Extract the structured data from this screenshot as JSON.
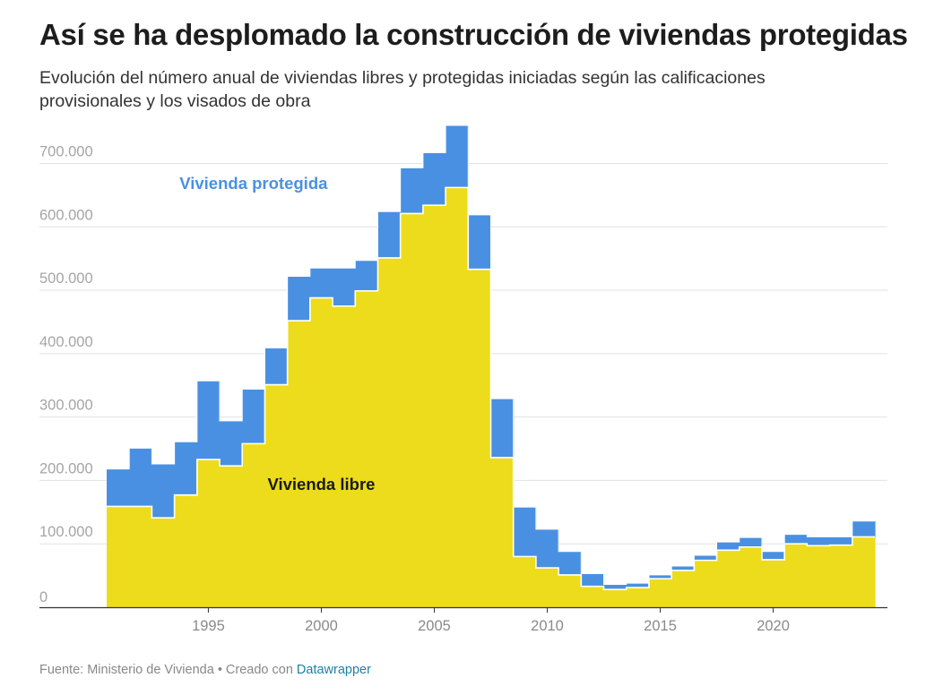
{
  "title": "Así se ha desplomado la construcción de viviendas protegidas",
  "subtitle": "Evolución del número anual de viviendas libres y protegidas iniciadas según las calificaciones provisionales y los visados de obra",
  "footer": {
    "source": "Fuente: Ministerio de Vivienda • Creado con ",
    "credit": "Datawrapper"
  },
  "chart_data": {
    "type": "area",
    "stacked": true,
    "step": true,
    "x": [
      1991,
      1992,
      1993,
      1994,
      1995,
      1996,
      1997,
      1998,
      1999,
      2000,
      2001,
      2002,
      2003,
      2004,
      2005,
      2006,
      2007,
      2008,
      2009,
      2010,
      2011,
      2012,
      2013,
      2014,
      2015,
      2016,
      2017,
      2018,
      2019,
      2020,
      2021,
      2022,
      2023,
      2024
    ],
    "series": [
      {
        "name": "Vivienda libre",
        "color": "#ecdc1c",
        "values": [
          159000,
          159000,
          141000,
          177000,
          233000,
          223000,
          258000,
          351000,
          452000,
          488000,
          475000,
          499000,
          551000,
          621000,
          634000,
          662000,
          533000,
          236000,
          80000,
          62000,
          51000,
          33000,
          28000,
          31000,
          45000,
          58000,
          74000,
          90000,
          95000,
          75000,
          100000,
          97000,
          98000,
          111000
        ]
      },
      {
        "name": "Vivienda protegida",
        "color": "#4a90e2",
        "values": [
          59000,
          92000,
          85000,
          84000,
          124000,
          71000,
          86000,
          58000,
          70000,
          47000,
          60000,
          48000,
          73000,
          72000,
          83000,
          98000,
          86000,
          93000,
          78000,
          61000,
          37000,
          20000,
          8000,
          7000,
          6000,
          7000,
          8000,
          13000,
          15000,
          13000,
          15000,
          14000,
          13000,
          25000
        ]
      }
    ],
    "ylim": [
      0,
      760000
    ],
    "yticks": [
      0,
      100000,
      200000,
      300000,
      400000,
      500000,
      600000,
      700000
    ],
    "ytick_labels": [
      "0",
      "100.000",
      "200.000",
      "300.000",
      "400.000",
      "500.000",
      "600.000",
      "700.000"
    ],
    "xticks": [
      1995,
      2000,
      2005,
      2010,
      2015,
      2020
    ],
    "xtick_labels": [
      "1995",
      "2000",
      "2005",
      "2010",
      "2015",
      "2020"
    ],
    "grid": true,
    "annotations": [
      {
        "text": "Vivienda protegida",
        "color": "#4a90e2",
        "x": 1997.5,
        "y": 660000
      },
      {
        "text": "Vivienda libre",
        "color": "#1a1a1a",
        "x": 2000.5,
        "y": 185000
      }
    ]
  }
}
